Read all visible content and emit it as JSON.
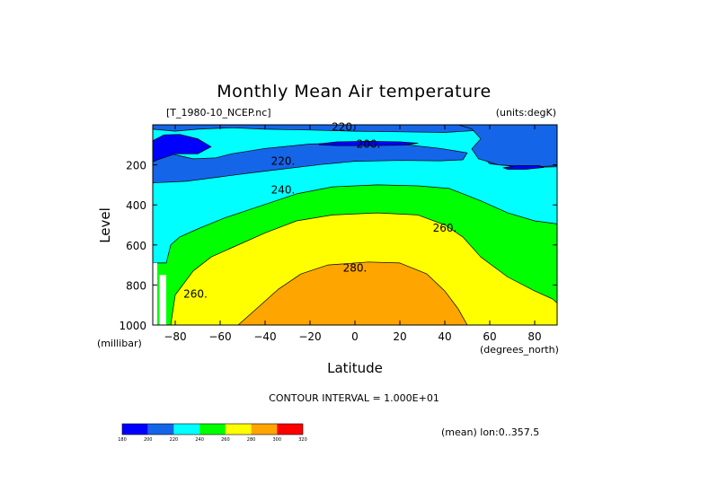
{
  "chart_data": {
    "type": "contour",
    "title": "Monthly Mean Air temperature",
    "dataset_label": "[T_1980-10_NCEP.nc]",
    "units_label": "(units:degK)",
    "xlabel": "Latitude",
    "x_units": "(degrees_north)",
    "ylabel": "Level",
    "y_units": "(millibar)",
    "xlim": [
      -90,
      90
    ],
    "ylim": [
      0,
      1000
    ],
    "y_inverted": true,
    "x_ticks": [
      -80,
      -60,
      -40,
      -20,
      0,
      20,
      40,
      60,
      80
    ],
    "y_ticks": [
      200,
      400,
      600,
      800,
      1000
    ],
    "contour_interval_text": "CONTOUR INTERVAL = 1.000E+01",
    "contour_interval": 10,
    "mean_text": "(mean) lon:0..357.5",
    "contour_labels": [
      {
        "text": "220.",
        "lat": -5,
        "level": 15
      },
      {
        "text": "200.",
        "lat": 6,
        "level": 100
      },
      {
        "text": "220.",
        "lat": -32,
        "level": 185
      },
      {
        "text": "240.",
        "lat": -32,
        "level": 330
      },
      {
        "text": "260.",
        "lat": 40,
        "level": 520
      },
      {
        "text": "280.",
        "lat": 0,
        "level": 720
      },
      {
        "text": "260.",
        "lat": -71,
        "level": 850
      }
    ],
    "colorbar": {
      "ticks": [
        "180",
        "200",
        "220",
        "240",
        "260",
        "280",
        "300",
        "320"
      ],
      "colors": [
        "#0000ff",
        "#1565e9",
        "#00ffff",
        "#00ff00",
        "#ffff00",
        "#ffa500",
        "#ff0000"
      ]
    },
    "bands": [
      {
        "min": 180,
        "max": 200,
        "color": "#0000ff"
      },
      {
        "min": 200,
        "max": 220,
        "color": "#1565e9"
      },
      {
        "min": 220,
        "max": 240,
        "color": "#00ffff"
      },
      {
        "min": 240,
        "max": 260,
        "color": "#00ff00"
      },
      {
        "min": 260,
        "max": 280,
        "color": "#ffff00"
      },
      {
        "min": 280,
        "max": 300,
        "color": "#ffa500"
      }
    ],
    "regions": [
      {
        "band": 2,
        "points": [
          [
            -90,
            0
          ],
          [
            90,
            0
          ],
          [
            90,
            1000
          ],
          [
            -90,
            1000
          ]
        ]
      },
      {
        "band": 1,
        "points": [
          [
            -90,
            0
          ],
          [
            90,
            0
          ],
          [
            90,
            210
          ],
          [
            76,
            213
          ],
          [
            60,
            195
          ],
          [
            55,
            135
          ],
          [
            60,
            95
          ],
          [
            75,
            85
          ],
          [
            90,
            82
          ],
          [
            90,
            0
          ]
        ],
        "rawclose": true
      },
      {
        "band": 1,
        "points": [
          [
            -90,
            0
          ],
          [
            88,
            0
          ],
          [
            83,
            22
          ],
          [
            62,
            23
          ],
          [
            40,
            38
          ],
          [
            20,
            35
          ],
          [
            0,
            32
          ],
          [
            -20,
            26
          ],
          [
            -40,
            22
          ],
          [
            -55,
            15
          ],
          [
            -70,
            22
          ],
          [
            -80,
            32
          ],
          [
            -90,
            22
          ]
        ]
      },
      {
        "band": 1,
        "points": [
          [
            -90,
            0
          ],
          [
            -90,
            290
          ],
          [
            -75,
            282
          ],
          [
            -60,
            260
          ],
          [
            -45,
            238
          ],
          [
            -30,
            218
          ],
          [
            -15,
            198
          ],
          [
            0,
            182
          ],
          [
            20,
            178
          ],
          [
            38,
            180
          ],
          [
            48,
            175
          ],
          [
            50,
            140
          ],
          [
            38,
            118
          ],
          [
            20,
            96
          ],
          [
            0,
            90
          ],
          [
            -20,
            96
          ],
          [
            -40,
            118
          ],
          [
            -55,
            145
          ],
          [
            -62,
            165
          ],
          [
            -72,
            170
          ],
          [
            -80,
            150
          ],
          [
            -85,
            110
          ],
          [
            -90,
            90
          ],
          [
            -90,
            0
          ]
        ]
      },
      {
        "band": 1,
        "points": [
          [
            46,
            0
          ],
          [
            88,
            0
          ],
          [
            90,
            0
          ],
          [
            90,
            205
          ],
          [
            78,
            210
          ],
          [
            64,
            200
          ],
          [
            55,
            170
          ],
          [
            52,
            120
          ],
          [
            56,
            70
          ],
          [
            52,
            20
          ],
          [
            46,
            0
          ]
        ]
      },
      {
        "band": 0,
        "points": [
          [
            -90,
            80
          ],
          [
            -85,
            50
          ],
          [
            -78,
            48
          ],
          [
            -70,
            70
          ],
          [
            -64,
            110
          ],
          [
            -70,
            145
          ],
          [
            -80,
            145
          ],
          [
            -88,
            175
          ],
          [
            -90,
            185
          ]
        ]
      },
      {
        "band": 0,
        "points": [
          [
            -16,
            95
          ],
          [
            -8,
            85
          ],
          [
            6,
            82
          ],
          [
            20,
            85
          ],
          [
            28,
            92
          ],
          [
            22,
            102
          ],
          [
            6,
            104
          ],
          [
            -8,
            104
          ],
          [
            -16,
            100
          ]
        ]
      },
      {
        "band": 0,
        "points": [
          [
            66,
            215
          ],
          [
            72,
            204
          ],
          [
            82,
            204
          ],
          [
            84,
            213
          ],
          [
            76,
            222
          ],
          [
            68,
            222
          ]
        ]
      },
      {
        "band": 3,
        "points": [
          [
            -78,
            560
          ],
          [
            -70,
            520
          ],
          [
            -58,
            465
          ],
          [
            -42,
            405
          ],
          [
            -26,
            345
          ],
          [
            -10,
            310
          ],
          [
            10,
            300
          ],
          [
            28,
            305
          ],
          [
            42,
            318
          ],
          [
            56,
            380
          ],
          [
            68,
            440
          ],
          [
            80,
            480
          ],
          [
            90,
            495
          ],
          [
            90,
            1000
          ],
          [
            -90,
            1000
          ],
          [
            -90,
            690
          ],
          [
            -84,
            690
          ],
          [
            -82,
            600
          ]
        ]
      },
      {
        "band": 4,
        "points": [
          [
            -82,
            1000
          ],
          [
            -80,
            850
          ],
          [
            -72,
            730
          ],
          [
            -64,
            660
          ],
          [
            -54,
            610
          ],
          [
            -40,
            540
          ],
          [
            -26,
            480
          ],
          [
            -10,
            450
          ],
          [
            10,
            440
          ],
          [
            28,
            450
          ],
          [
            40,
            500
          ],
          [
            48,
            560
          ],
          [
            56,
            660
          ],
          [
            68,
            760
          ],
          [
            80,
            830
          ],
          [
            88,
            870
          ],
          [
            90,
            890
          ],
          [
            90,
            1000
          ]
        ]
      },
      {
        "band": 5,
        "points": [
          [
            -52,
            1000
          ],
          [
            -44,
            920
          ],
          [
            -34,
            820
          ],
          [
            -24,
            745
          ],
          [
            -12,
            700
          ],
          [
            6,
            685
          ],
          [
            20,
            690
          ],
          [
            32,
            745
          ],
          [
            40,
            830
          ],
          [
            46,
            920
          ],
          [
            50,
            1000
          ]
        ]
      }
    ],
    "blank_areas": [
      {
        "points": [
          [
            -90,
            690
          ],
          [
            -88,
            690
          ],
          [
            -88,
            1000
          ],
          [
            -90,
            1000
          ]
        ]
      },
      {
        "points": [
          [
            -87,
            750
          ],
          [
            -84,
            750
          ],
          [
            -84,
            1000
          ],
          [
            -87,
            1000
          ]
        ]
      }
    ]
  }
}
